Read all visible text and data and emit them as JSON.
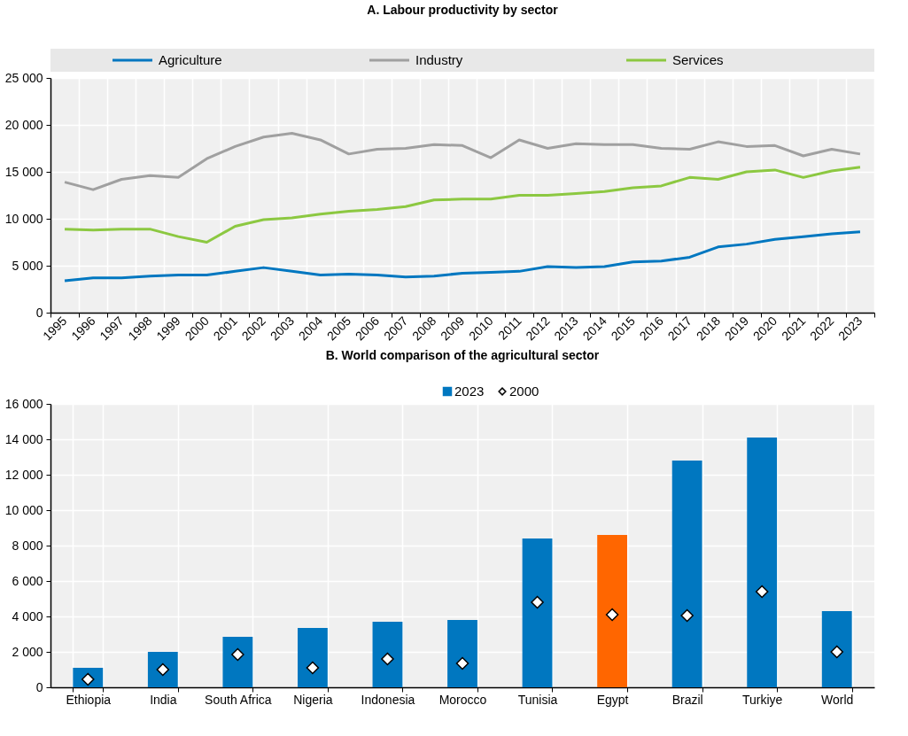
{
  "chart_data": [
    {
      "type": "line",
      "title": "A. Labour productivity by sector",
      "categories": [
        "1995",
        "1996",
        "1997",
        "1998",
        "1999",
        "2000",
        "2001",
        "2002",
        "2003",
        "2004",
        "2005",
        "2006",
        "2007",
        "2008",
        "2009",
        "2010",
        "2011",
        "2012",
        "2013",
        "2014",
        "2015",
        "2016",
        "2017",
        "2018",
        "2019",
        "2020",
        "2021",
        "2022",
        "2023"
      ],
      "series": [
        {
          "name": "Agriculture",
          "color": "#0077c0",
          "values": [
            3400,
            3700,
            3700,
            3900,
            4000,
            4000,
            4400,
            4800,
            4400,
            4000,
            4100,
            4000,
            3800,
            3900,
            4200,
            4300,
            4400,
            4900,
            4800,
            4900,
            5400,
            5500,
            5900,
            7000,
            7300,
            7800,
            8100,
            8400,
            8600
          ]
        },
        {
          "name": "Industry",
          "color": "#a0a0a0",
          "values": [
            13900,
            13100,
            14200,
            14600,
            14400,
            16400,
            17700,
            18700,
            19100,
            18400,
            16900,
            17400,
            17500,
            17900,
            17800,
            16500,
            18400,
            17500,
            18000,
            17900,
            17900,
            17500,
            17400,
            18200,
            17700,
            17800,
            16700,
            17400,
            16900
          ]
        },
        {
          "name": "Services",
          "color": "#8cc841",
          "values": [
            8900,
            8800,
            8900,
            8900,
            8100,
            7500,
            9200,
            9900,
            10100,
            10500,
            10800,
            11000,
            11300,
            12000,
            12100,
            12100,
            12500,
            12500,
            12700,
            12900,
            13300,
            13500,
            14400,
            14200,
            15000,
            15200,
            14400,
            15100,
            15500
          ]
        }
      ],
      "ylim": [
        0,
        25000
      ],
      "yticks": [
        0,
        {
          "value": 5000,
          "label": "5 000"
        },
        {
          "value": 10000,
          "label": "10 000"
        },
        {
          "value": 15000,
          "label": "15 000"
        },
        {
          "value": 20000,
          "label": "20 000"
        },
        {
          "value": 25000,
          "label": "25 000"
        }
      ],
      "grid": true,
      "legend": "top"
    },
    {
      "type": "bar",
      "title": "B. World comparison of the agricultural sector",
      "categories": [
        "Ethiopia",
        "India",
        "South Africa",
        "Nigeria",
        "Indonesia",
        "Morocco",
        "Tunisia",
        "Egypt",
        "Brazil",
        "Turkiye",
        "World"
      ],
      "series": [
        {
          "name": "2023",
          "color": "#0077c0",
          "colors": [
            "#0077c0",
            "#0077c0",
            "#0077c0",
            "#0077c0",
            "#0077c0",
            "#0077c0",
            "#0077c0",
            "#ff6600",
            "#0077c0",
            "#0077c0",
            "#0077c0"
          ],
          "values": [
            1100,
            2000,
            2850,
            3350,
            3700,
            3800,
            8400,
            8600,
            12800,
            14100,
            4300
          ]
        },
        {
          "name": "2000",
          "type": "scatter",
          "marker": "diamond",
          "color": "#ffffff",
          "values": [
            450,
            1000,
            1850,
            1100,
            1600,
            1350,
            4800,
            4100,
            4050,
            5400,
            2000
          ]
        }
      ],
      "ylim": [
        0,
        16000
      ],
      "yticks": [
        0,
        {
          "value": 2000,
          "label": "2 000"
        },
        {
          "value": 4000,
          "label": "4 000"
        },
        {
          "value": 6000,
          "label": "6 000"
        },
        {
          "value": 8000,
          "label": "8 000"
        },
        {
          "value": 10000,
          "label": "10 000"
        },
        {
          "value": 12000,
          "label": "12 000"
        },
        {
          "value": 14000,
          "label": "14 000"
        },
        {
          "value": 16000,
          "label": "16 000"
        }
      ],
      "grid": true,
      "legend": "top"
    }
  ]
}
